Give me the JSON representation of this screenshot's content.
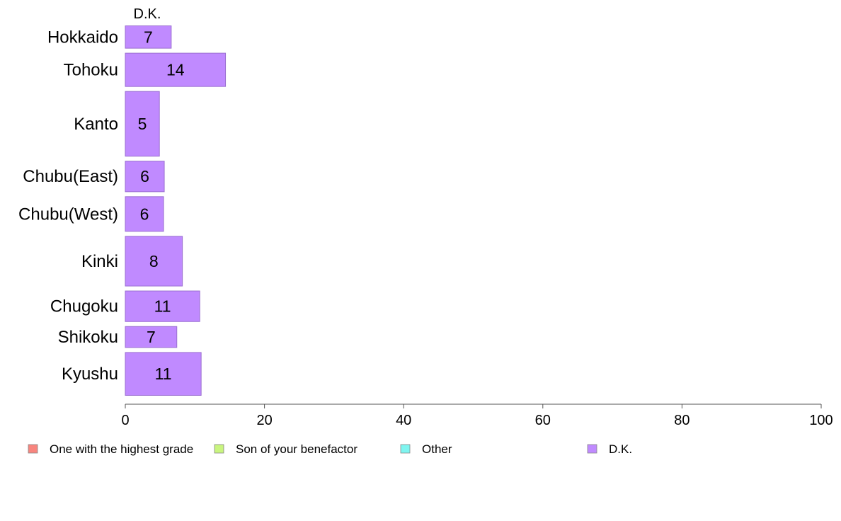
{
  "chart_data": {
    "type": "bar",
    "orientation": "horizontal",
    "stacked": true,
    "categories": [
      "Hokkaido",
      "Tohoku",
      "Kanto",
      "Chubu(East)",
      "Chubu(West)",
      "Kinki",
      "Chugoku",
      "Shikoku",
      "Kyushu"
    ],
    "series": [
      {
        "name": "One with the highest grade",
        "color": "#F8857E",
        "values": [
          0,
          0,
          0,
          0,
          0,
          0,
          0,
          0,
          0
        ]
      },
      {
        "name": "Son of your benefactor",
        "color": "#C9F57F",
        "values": [
          0,
          0,
          0,
          0,
          0,
          0,
          0,
          0,
          0
        ]
      },
      {
        "name": "Other",
        "color": "#7FF5F0",
        "values": [
          0,
          0,
          0,
          0,
          0,
          0,
          0,
          0,
          0
        ]
      },
      {
        "name": "D.K.",
        "color": "#C08AFF",
        "values": [
          6.6,
          14.4,
          4.9,
          5.6,
          5.5,
          8.2,
          10.7,
          7.4,
          10.9
        ]
      }
    ],
    "data_labels": [
      "7",
      "14",
      "5",
      "6",
      "6",
      "8",
      "11",
      "7",
      "11"
    ],
    "top_label": "D.K.",
    "row_weights": [
      1,
      1.4,
      2.55,
      1.3,
      1.45,
      2.0,
      1.3,
      0.95,
      1.75
    ],
    "xlim": [
      0,
      100
    ],
    "xticks": [
      0,
      20,
      40,
      60,
      80,
      100
    ],
    "xtick_labels": [
      "0",
      "20",
      "40",
      "60",
      "80",
      "100"
    ],
    "title": "",
    "xlabel": "",
    "ylabel": "",
    "grid": false,
    "legend_position": "bottom"
  }
}
